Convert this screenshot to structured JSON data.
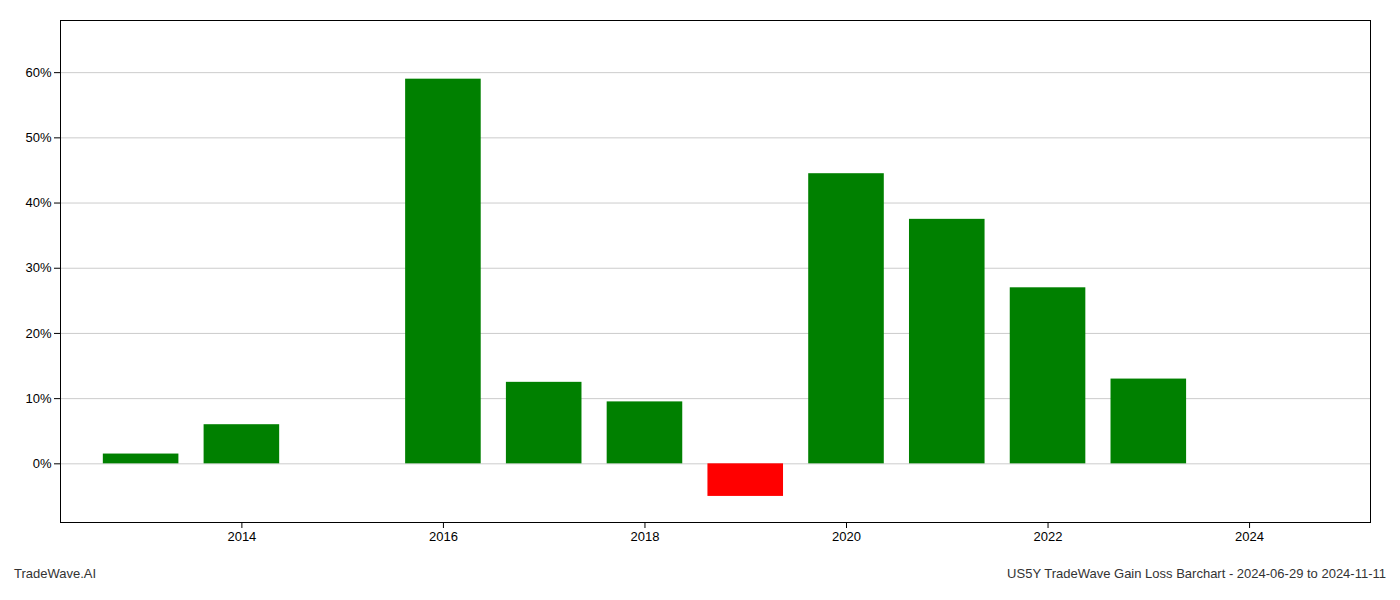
{
  "chart_data": {
    "type": "bar",
    "x": [
      2013,
      2014,
      2015,
      2016,
      2017,
      2018,
      2019,
      2020,
      2021,
      2022,
      2023,
      2024
    ],
    "values": [
      1.5,
      6.0,
      0.0,
      59.0,
      12.5,
      9.5,
      -5.0,
      44.5,
      37.5,
      27.0,
      13.0,
      0.0
    ],
    "colors": [
      "#008000",
      "#008000",
      "#008000",
      "#008000",
      "#008000",
      "#008000",
      "#ff0000",
      "#008000",
      "#008000",
      "#008000",
      "#008000",
      "#008000"
    ],
    "xlim": [
      2012.2,
      2025.2
    ],
    "xticks": [
      2014,
      2016,
      2018,
      2020,
      2022,
      2024
    ],
    "ylim": [
      -9,
      68
    ],
    "yticks": [
      {
        "value": 0,
        "label": "0%"
      },
      {
        "value": 10,
        "label": "10%"
      },
      {
        "value": 20,
        "label": "20%"
      },
      {
        "value": 30,
        "label": "30%"
      },
      {
        "value": 40,
        "label": "40%"
      },
      {
        "value": 50,
        "label": "50%"
      },
      {
        "value": 60,
        "label": "60%"
      }
    ],
    "grid": true,
    "annotations": [
      "TradeWave.AI",
      "US5Y TradeWave Gain Loss Barchart - 2024-06-29 to 2024-11-11"
    ]
  }
}
